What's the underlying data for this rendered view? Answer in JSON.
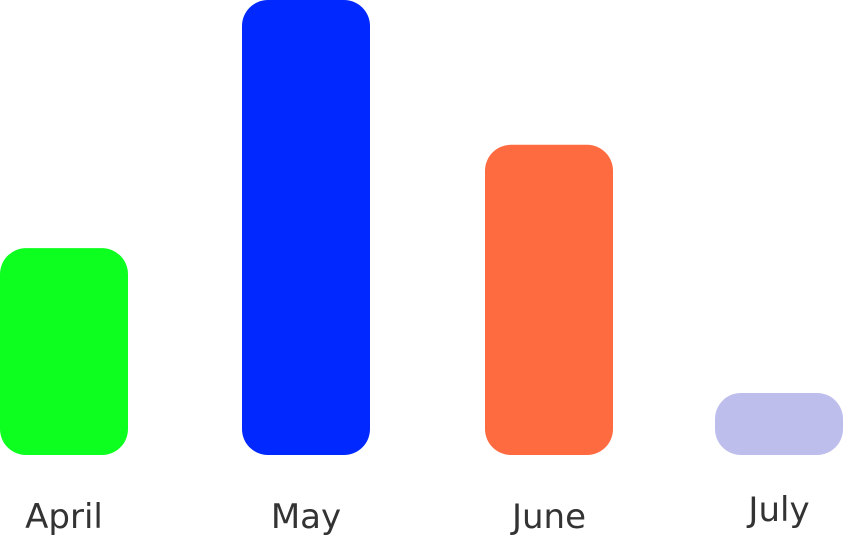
{
  "chart_data": {
    "type": "bar",
    "categories": [
      "April",
      "May",
      "June",
      "July"
    ],
    "values": [
      30,
      66,
      45,
      9
    ],
    "ylim": [
      0,
      66
    ],
    "colors": [
      "#0dff1f",
      "#0028ff",
      "#ff6b40",
      "#bebeed"
    ],
    "grid": false,
    "legend": "none"
  }
}
